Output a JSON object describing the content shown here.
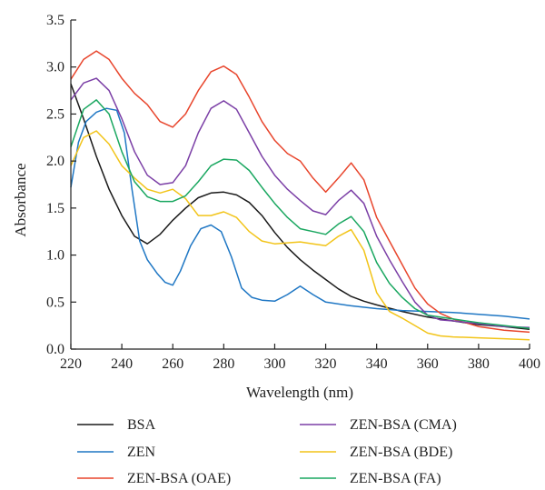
{
  "chart_data": {
    "type": "line",
    "title": "",
    "xlabel": "Wavelength (nm)",
    "ylabel": "Absorbance",
    "xlim": [
      220,
      400
    ],
    "ylim": [
      0.0,
      3.5
    ],
    "xticks": [
      220,
      240,
      260,
      280,
      300,
      320,
      340,
      360,
      380,
      400
    ],
    "yticks": [
      0.0,
      0.5,
      1.0,
      1.5,
      2.0,
      2.5,
      3.0,
      3.5
    ],
    "xtick_labels": [
      "220",
      "240",
      "260",
      "280",
      "300",
      "320",
      "340",
      "360",
      "380",
      "400"
    ],
    "ytick_labels": [
      "0.0",
      "0.5",
      "1.0",
      "1.5",
      "2.0",
      "2.5",
      "3.0",
      "3.5"
    ],
    "grid": false,
    "legend_position": "bottom",
    "series": [
      {
        "name": "BSA",
        "color": "#1a1a1a",
        "points": [
          [
            220,
            2.82
          ],
          [
            225,
            2.45
          ],
          [
            230,
            2.05
          ],
          [
            235,
            1.7
          ],
          [
            240,
            1.42
          ],
          [
            245,
            1.2
          ],
          [
            250,
            1.12
          ],
          [
            255,
            1.22
          ],
          [
            260,
            1.37
          ],
          [
            265,
            1.5
          ],
          [
            270,
            1.61
          ],
          [
            275,
            1.66
          ],
          [
            280,
            1.67
          ],
          [
            285,
            1.64
          ],
          [
            290,
            1.56
          ],
          [
            295,
            1.42
          ],
          [
            300,
            1.24
          ],
          [
            305,
            1.08
          ],
          [
            310,
            0.95
          ],
          [
            315,
            0.84
          ],
          [
            320,
            0.74
          ],
          [
            325,
            0.64
          ],
          [
            330,
            0.56
          ],
          [
            335,
            0.51
          ],
          [
            340,
            0.47
          ],
          [
            350,
            0.4
          ],
          [
            360,
            0.34
          ],
          [
            370,
            0.3
          ],
          [
            380,
            0.26
          ],
          [
            390,
            0.24
          ],
          [
            400,
            0.21
          ]
        ]
      },
      {
        "name": "ZEN",
        "color": "#1f77c4",
        "points": [
          [
            220,
            1.72
          ],
          [
            223,
            2.2
          ],
          [
            226,
            2.42
          ],
          [
            230,
            2.52
          ],
          [
            234,
            2.56
          ],
          [
            238,
            2.54
          ],
          [
            241,
            2.3
          ],
          [
            244,
            1.7
          ],
          [
            247,
            1.15
          ],
          [
            250,
            0.95
          ],
          [
            254,
            0.8
          ],
          [
            257,
            0.71
          ],
          [
            260,
            0.68
          ],
          [
            263,
            0.83
          ],
          [
            267,
            1.1
          ],
          [
            271,
            1.28
          ],
          [
            275,
            1.32
          ],
          [
            279,
            1.25
          ],
          [
            283,
            0.98
          ],
          [
            287,
            0.65
          ],
          [
            291,
            0.55
          ],
          [
            295,
            0.52
          ],
          [
            300,
            0.51
          ],
          [
            305,
            0.58
          ],
          [
            310,
            0.67
          ],
          [
            315,
            0.58
          ],
          [
            320,
            0.5
          ],
          [
            330,
            0.46
          ],
          [
            340,
            0.43
          ],
          [
            350,
            0.41
          ],
          [
            360,
            0.4
          ],
          [
            370,
            0.39
          ],
          [
            380,
            0.37
          ],
          [
            390,
            0.35
          ],
          [
            400,
            0.32
          ]
        ]
      },
      {
        "name": "ZEN-BSA (OAE)",
        "color": "#e8452c",
        "points": [
          [
            220,
            2.87
          ],
          [
            225,
            3.08
          ],
          [
            230,
            3.17
          ],
          [
            235,
            3.08
          ],
          [
            240,
            2.88
          ],
          [
            245,
            2.72
          ],
          [
            250,
            2.6
          ],
          [
            255,
            2.42
          ],
          [
            260,
            2.36
          ],
          [
            265,
            2.5
          ],
          [
            270,
            2.75
          ],
          [
            275,
            2.95
          ],
          [
            280,
            3.01
          ],
          [
            285,
            2.92
          ],
          [
            290,
            2.68
          ],
          [
            295,
            2.42
          ],
          [
            300,
            2.22
          ],
          [
            305,
            2.08
          ],
          [
            310,
            2.0
          ],
          [
            315,
            1.82
          ],
          [
            320,
            1.67
          ],
          [
            325,
            1.82
          ],
          [
            330,
            1.98
          ],
          [
            335,
            1.8
          ],
          [
            340,
            1.4
          ],
          [
            345,
            1.15
          ],
          [
            350,
            0.9
          ],
          [
            355,
            0.65
          ],
          [
            360,
            0.48
          ],
          [
            365,
            0.38
          ],
          [
            370,
            0.32
          ],
          [
            380,
            0.24
          ],
          [
            390,
            0.2
          ],
          [
            400,
            0.18
          ]
        ]
      },
      {
        "name": "ZEN-BSA (CMA)",
        "color": "#7b3fa6",
        "points": [
          [
            220,
            2.65
          ],
          [
            225,
            2.83
          ],
          [
            230,
            2.88
          ],
          [
            235,
            2.75
          ],
          [
            240,
            2.45
          ],
          [
            245,
            2.1
          ],
          [
            250,
            1.85
          ],
          [
            255,
            1.75
          ],
          [
            260,
            1.77
          ],
          [
            265,
            1.95
          ],
          [
            270,
            2.3
          ],
          [
            275,
            2.56
          ],
          [
            280,
            2.64
          ],
          [
            285,
            2.55
          ],
          [
            290,
            2.3
          ],
          [
            295,
            2.05
          ],
          [
            300,
            1.85
          ],
          [
            305,
            1.7
          ],
          [
            310,
            1.58
          ],
          [
            315,
            1.47
          ],
          [
            320,
            1.43
          ],
          [
            325,
            1.58
          ],
          [
            330,
            1.69
          ],
          [
            335,
            1.55
          ],
          [
            340,
            1.2
          ],
          [
            345,
            0.95
          ],
          [
            350,
            0.72
          ],
          [
            355,
            0.5
          ],
          [
            360,
            0.36
          ],
          [
            365,
            0.31
          ],
          [
            370,
            0.3
          ],
          [
            380,
            0.27
          ],
          [
            390,
            0.24
          ],
          [
            400,
            0.23
          ]
        ]
      },
      {
        "name": "ZEN-BSA (BDE)",
        "color": "#f2c419",
        "points": [
          [
            220,
            1.95
          ],
          [
            225,
            2.25
          ],
          [
            230,
            2.32
          ],
          [
            235,
            2.18
          ],
          [
            240,
            1.95
          ],
          [
            245,
            1.82
          ],
          [
            250,
            1.7
          ],
          [
            255,
            1.66
          ],
          [
            260,
            1.7
          ],
          [
            265,
            1.6
          ],
          [
            270,
            1.42
          ],
          [
            275,
            1.42
          ],
          [
            280,
            1.46
          ],
          [
            285,
            1.4
          ],
          [
            290,
            1.25
          ],
          [
            295,
            1.15
          ],
          [
            300,
            1.12
          ],
          [
            305,
            1.13
          ],
          [
            310,
            1.14
          ],
          [
            315,
            1.12
          ],
          [
            320,
            1.1
          ],
          [
            325,
            1.2
          ],
          [
            330,
            1.27
          ],
          [
            335,
            1.05
          ],
          [
            340,
            0.6
          ],
          [
            345,
            0.4
          ],
          [
            350,
            0.33
          ],
          [
            355,
            0.25
          ],
          [
            360,
            0.17
          ],
          [
            365,
            0.14
          ],
          [
            370,
            0.13
          ],
          [
            380,
            0.12
          ],
          [
            390,
            0.11
          ],
          [
            400,
            0.1
          ]
        ]
      },
      {
        "name": "ZEN-BSA (FA)",
        "color": "#1aa760",
        "points": [
          [
            220,
            2.15
          ],
          [
            225,
            2.55
          ],
          [
            230,
            2.65
          ],
          [
            235,
            2.5
          ],
          [
            240,
            2.1
          ],
          [
            245,
            1.78
          ],
          [
            250,
            1.62
          ],
          [
            255,
            1.57
          ],
          [
            260,
            1.57
          ],
          [
            265,
            1.63
          ],
          [
            270,
            1.78
          ],
          [
            275,
            1.95
          ],
          [
            280,
            2.02
          ],
          [
            285,
            2.01
          ],
          [
            290,
            1.9
          ],
          [
            295,
            1.72
          ],
          [
            300,
            1.55
          ],
          [
            305,
            1.4
          ],
          [
            310,
            1.28
          ],
          [
            315,
            1.25
          ],
          [
            320,
            1.22
          ],
          [
            325,
            1.33
          ],
          [
            330,
            1.41
          ],
          [
            335,
            1.25
          ],
          [
            340,
            0.92
          ],
          [
            345,
            0.7
          ],
          [
            350,
            0.55
          ],
          [
            355,
            0.43
          ],
          [
            360,
            0.36
          ],
          [
            370,
            0.32
          ],
          [
            380,
            0.28
          ],
          [
            390,
            0.25
          ],
          [
            400,
            0.22
          ]
        ]
      }
    ]
  }
}
